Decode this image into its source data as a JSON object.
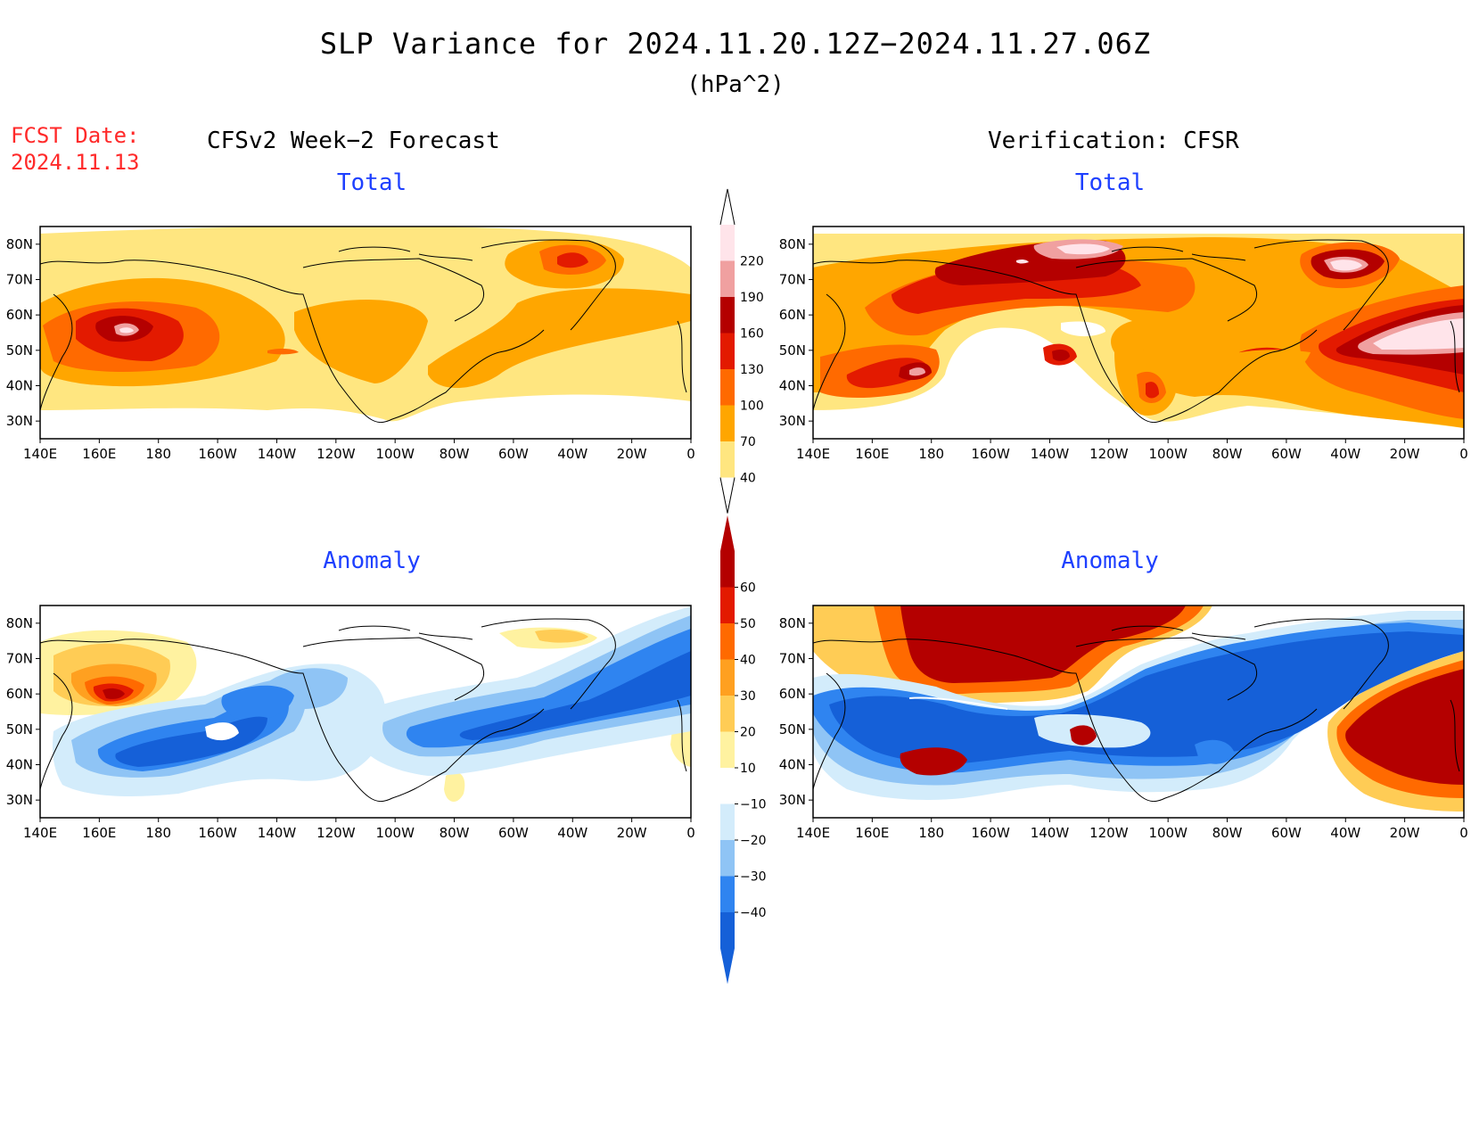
{
  "header": {
    "title": "SLP Variance for 2024.11.20.12Z−2024.11.27.06Z",
    "units": "(hPa^2)",
    "fcst_label": "FCST Date:",
    "fcst_date": "2024.11.13"
  },
  "columns": {
    "left": "CFSv2 Week−2 Forecast",
    "right": "Verification: CFSR"
  },
  "panels": [
    {
      "id": "forecast-total",
      "title": "Total"
    },
    {
      "id": "verification-total",
      "title": "Total"
    },
    {
      "id": "forecast-anomaly",
      "title": "Anomaly"
    },
    {
      "id": "verification-anomaly",
      "title": "Anomaly"
    }
  ],
  "axes": {
    "lon_ticks": [
      "140E",
      "160E",
      "180",
      "160W",
      "140W",
      "120W",
      "100W",
      "80W",
      "60W",
      "40W",
      "20W",
      "0"
    ],
    "lat_ticks": [
      "80N",
      "70N",
      "60N",
      "50N",
      "40N",
      "30N"
    ],
    "lon_range_deg_east": [
      140,
      360
    ],
    "lat_range_deg": [
      25,
      85
    ]
  },
  "colorbars": {
    "total": {
      "labels": [
        "40",
        "70",
        "100",
        "130",
        "160",
        "190",
        "220"
      ],
      "levels": [
        40,
        70,
        100,
        130,
        160,
        190,
        220
      ],
      "colors": [
        "#ffe680",
        "#ffa600",
        "#ff6a00",
        "#e31a00",
        "#b40000",
        "#f0a0a0",
        "#ffe4ea"
      ]
    },
    "anomaly": {
      "labels": [
        "60",
        "50",
        "40",
        "30",
        "20",
        "10",
        "−10",
        "−20",
        "−30",
        "−40"
      ],
      "levels": [
        -40,
        -30,
        -20,
        -10,
        10,
        20,
        30,
        40,
        50,
        60
      ],
      "colors": [
        "#1560d8",
        "#2f84f0",
        "#8fc4f5",
        "#d3ecfb",
        "#ffffff",
        "#fff2a0",
        "#ffcc55",
        "#ffa020",
        "#ff6a00",
        "#e31a00",
        "#b40000"
      ]
    }
  }
}
